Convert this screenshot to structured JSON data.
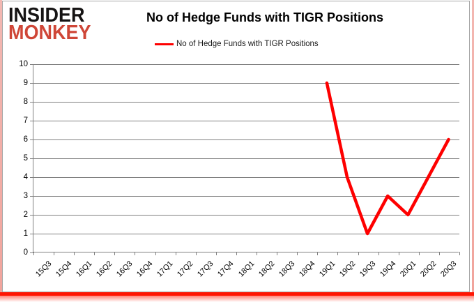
{
  "logo": {
    "line1": "INSIDER",
    "line2": "MONKEY",
    "color_line1": "#161414",
    "color_line2": "#cf4637"
  },
  "header": {
    "title": "No of Hedge Funds with TIGR Positions"
  },
  "legend": {
    "label": "No of Hedge Funds with TIGR Positions"
  },
  "colors": {
    "series_line": "#fe0000",
    "gridline": "#808080",
    "border_red": "#ff1502",
    "border_pink": "#f3b8b2",
    "chart_border_gray": "#a6a6a6"
  },
  "chart_data": {
    "type": "line",
    "title": "No of Hedge Funds with TIGR Positions",
    "categories": [
      "15Q3",
      "15Q4",
      "16Q1",
      "16Q2",
      "16Q3",
      "16Q4",
      "17Q1",
      "17Q2",
      "17Q3",
      "17Q4",
      "18Q1",
      "18Q2",
      "18Q3",
      "18Q4",
      "19Q1",
      "19Q2",
      "19Q3",
      "19Q4",
      "20Q1",
      "20Q2",
      "20Q3"
    ],
    "series": [
      {
        "name": "No of Hedge Funds with TIGR Positions",
        "values": [
          null,
          null,
          null,
          null,
          null,
          null,
          null,
          null,
          null,
          null,
          null,
          null,
          null,
          null,
          9,
          4,
          1,
          3,
          2,
          4,
          6
        ]
      }
    ],
    "xlabel": "",
    "ylabel": "",
    "ylim": [
      0,
      10
    ],
    "yticks": [
      0,
      1,
      2,
      3,
      4,
      5,
      6,
      7,
      8,
      9,
      10
    ],
    "grid": true,
    "legend_position": "top-center"
  }
}
